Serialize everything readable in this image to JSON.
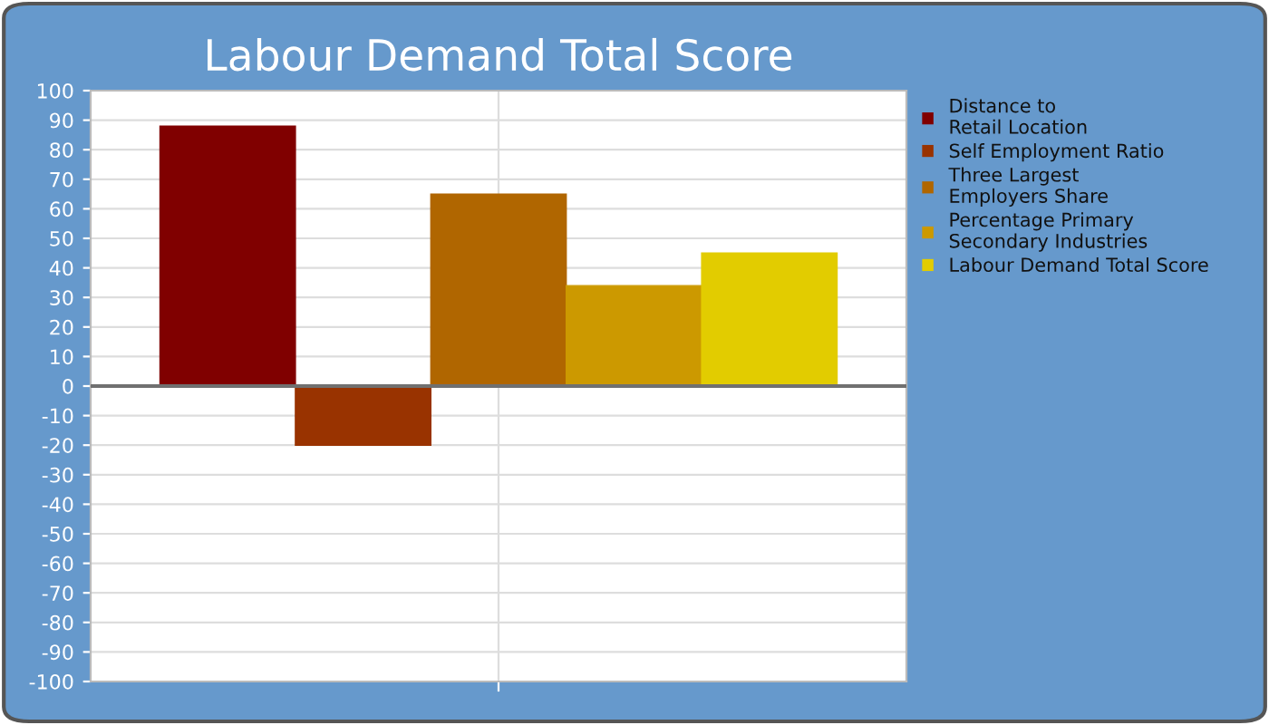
{
  "chart_data": {
    "type": "bar",
    "title": "Labour Demand Total Score",
    "categories": [
      null
    ],
    "series": [
      {
        "name": "Distance to\nRetail Location",
        "color": "#800000",
        "values": [
          88
        ]
      },
      {
        "name": "Self Employment Ratio",
        "color": "#993300",
        "values": [
          -20
        ]
      },
      {
        "name": "Three Largest\nEmployers Share",
        "color": "#b06600",
        "values": [
          65
        ]
      },
      {
        "name": "Percentage Primary\nSecondary Industries",
        "color": "#cc9900",
        "values": [
          34
        ]
      },
      {
        "name": "Labour Demand Total Score",
        "color": "#e2cc00",
        "values": [
          45
        ]
      }
    ],
    "ylim": [
      -100,
      100
    ],
    "yticks": [
      -100,
      -90,
      -80,
      -70,
      -60,
      -50,
      -40,
      -30,
      -20,
      -10,
      0,
      10,
      20,
      30,
      40,
      50,
      60,
      70,
      80,
      90,
      100
    ],
    "grid": true,
    "legend": "right",
    "ref_lines": [
      {
        "axis": "y",
        "value": 0,
        "color": "#707070"
      }
    ]
  }
}
